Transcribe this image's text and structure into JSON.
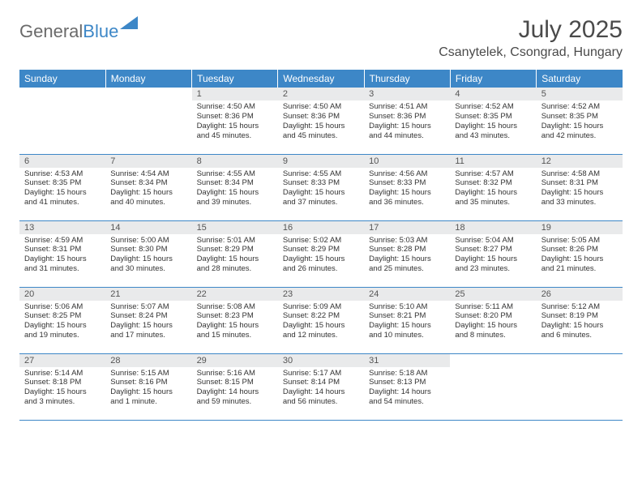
{
  "brand": {
    "part1": "General",
    "part2": "Blue"
  },
  "title": "July 2025",
  "location": "Csanytelek, Csongrad, Hungary",
  "colors": {
    "header_bg": "#3d87c7",
    "header_text": "#ffffff",
    "daynum_bg": "#e9eaeb",
    "row_border": "#3d87c7",
    "text": "#333333",
    "background": "#ffffff"
  },
  "weekdays": [
    "Sunday",
    "Monday",
    "Tuesday",
    "Wednesday",
    "Thursday",
    "Friday",
    "Saturday"
  ],
  "weeks": [
    [
      {
        "empty": true
      },
      {
        "empty": true
      },
      {
        "num": "1",
        "sunrise": "Sunrise: 4:50 AM",
        "sunset": "Sunset: 8:36 PM",
        "daylight": "Daylight: 15 hours and 45 minutes."
      },
      {
        "num": "2",
        "sunrise": "Sunrise: 4:50 AM",
        "sunset": "Sunset: 8:36 PM",
        "daylight": "Daylight: 15 hours and 45 minutes."
      },
      {
        "num": "3",
        "sunrise": "Sunrise: 4:51 AM",
        "sunset": "Sunset: 8:36 PM",
        "daylight": "Daylight: 15 hours and 44 minutes."
      },
      {
        "num": "4",
        "sunrise": "Sunrise: 4:52 AM",
        "sunset": "Sunset: 8:35 PM",
        "daylight": "Daylight: 15 hours and 43 minutes."
      },
      {
        "num": "5",
        "sunrise": "Sunrise: 4:52 AM",
        "sunset": "Sunset: 8:35 PM",
        "daylight": "Daylight: 15 hours and 42 minutes."
      }
    ],
    [
      {
        "num": "6",
        "sunrise": "Sunrise: 4:53 AM",
        "sunset": "Sunset: 8:35 PM",
        "daylight": "Daylight: 15 hours and 41 minutes."
      },
      {
        "num": "7",
        "sunrise": "Sunrise: 4:54 AM",
        "sunset": "Sunset: 8:34 PM",
        "daylight": "Daylight: 15 hours and 40 minutes."
      },
      {
        "num": "8",
        "sunrise": "Sunrise: 4:55 AM",
        "sunset": "Sunset: 8:34 PM",
        "daylight": "Daylight: 15 hours and 39 minutes."
      },
      {
        "num": "9",
        "sunrise": "Sunrise: 4:55 AM",
        "sunset": "Sunset: 8:33 PM",
        "daylight": "Daylight: 15 hours and 37 minutes."
      },
      {
        "num": "10",
        "sunrise": "Sunrise: 4:56 AM",
        "sunset": "Sunset: 8:33 PM",
        "daylight": "Daylight: 15 hours and 36 minutes."
      },
      {
        "num": "11",
        "sunrise": "Sunrise: 4:57 AM",
        "sunset": "Sunset: 8:32 PM",
        "daylight": "Daylight: 15 hours and 35 minutes."
      },
      {
        "num": "12",
        "sunrise": "Sunrise: 4:58 AM",
        "sunset": "Sunset: 8:31 PM",
        "daylight": "Daylight: 15 hours and 33 minutes."
      }
    ],
    [
      {
        "num": "13",
        "sunrise": "Sunrise: 4:59 AM",
        "sunset": "Sunset: 8:31 PM",
        "daylight": "Daylight: 15 hours and 31 minutes."
      },
      {
        "num": "14",
        "sunrise": "Sunrise: 5:00 AM",
        "sunset": "Sunset: 8:30 PM",
        "daylight": "Daylight: 15 hours and 30 minutes."
      },
      {
        "num": "15",
        "sunrise": "Sunrise: 5:01 AM",
        "sunset": "Sunset: 8:29 PM",
        "daylight": "Daylight: 15 hours and 28 minutes."
      },
      {
        "num": "16",
        "sunrise": "Sunrise: 5:02 AM",
        "sunset": "Sunset: 8:29 PM",
        "daylight": "Daylight: 15 hours and 26 minutes."
      },
      {
        "num": "17",
        "sunrise": "Sunrise: 5:03 AM",
        "sunset": "Sunset: 8:28 PM",
        "daylight": "Daylight: 15 hours and 25 minutes."
      },
      {
        "num": "18",
        "sunrise": "Sunrise: 5:04 AM",
        "sunset": "Sunset: 8:27 PM",
        "daylight": "Daylight: 15 hours and 23 minutes."
      },
      {
        "num": "19",
        "sunrise": "Sunrise: 5:05 AM",
        "sunset": "Sunset: 8:26 PM",
        "daylight": "Daylight: 15 hours and 21 minutes."
      }
    ],
    [
      {
        "num": "20",
        "sunrise": "Sunrise: 5:06 AM",
        "sunset": "Sunset: 8:25 PM",
        "daylight": "Daylight: 15 hours and 19 minutes."
      },
      {
        "num": "21",
        "sunrise": "Sunrise: 5:07 AM",
        "sunset": "Sunset: 8:24 PM",
        "daylight": "Daylight: 15 hours and 17 minutes."
      },
      {
        "num": "22",
        "sunrise": "Sunrise: 5:08 AM",
        "sunset": "Sunset: 8:23 PM",
        "daylight": "Daylight: 15 hours and 15 minutes."
      },
      {
        "num": "23",
        "sunrise": "Sunrise: 5:09 AM",
        "sunset": "Sunset: 8:22 PM",
        "daylight": "Daylight: 15 hours and 12 minutes."
      },
      {
        "num": "24",
        "sunrise": "Sunrise: 5:10 AM",
        "sunset": "Sunset: 8:21 PM",
        "daylight": "Daylight: 15 hours and 10 minutes."
      },
      {
        "num": "25",
        "sunrise": "Sunrise: 5:11 AM",
        "sunset": "Sunset: 8:20 PM",
        "daylight": "Daylight: 15 hours and 8 minutes."
      },
      {
        "num": "26",
        "sunrise": "Sunrise: 5:12 AM",
        "sunset": "Sunset: 8:19 PM",
        "daylight": "Daylight: 15 hours and 6 minutes."
      }
    ],
    [
      {
        "num": "27",
        "sunrise": "Sunrise: 5:14 AM",
        "sunset": "Sunset: 8:18 PM",
        "daylight": "Daylight: 15 hours and 3 minutes."
      },
      {
        "num": "28",
        "sunrise": "Sunrise: 5:15 AM",
        "sunset": "Sunset: 8:16 PM",
        "daylight": "Daylight: 15 hours and 1 minute."
      },
      {
        "num": "29",
        "sunrise": "Sunrise: 5:16 AM",
        "sunset": "Sunset: 8:15 PM",
        "daylight": "Daylight: 14 hours and 59 minutes."
      },
      {
        "num": "30",
        "sunrise": "Sunrise: 5:17 AM",
        "sunset": "Sunset: 8:14 PM",
        "daylight": "Daylight: 14 hours and 56 minutes."
      },
      {
        "num": "31",
        "sunrise": "Sunrise: 5:18 AM",
        "sunset": "Sunset: 8:13 PM",
        "daylight": "Daylight: 14 hours and 54 minutes."
      },
      {
        "empty": true
      },
      {
        "empty": true
      }
    ]
  ]
}
